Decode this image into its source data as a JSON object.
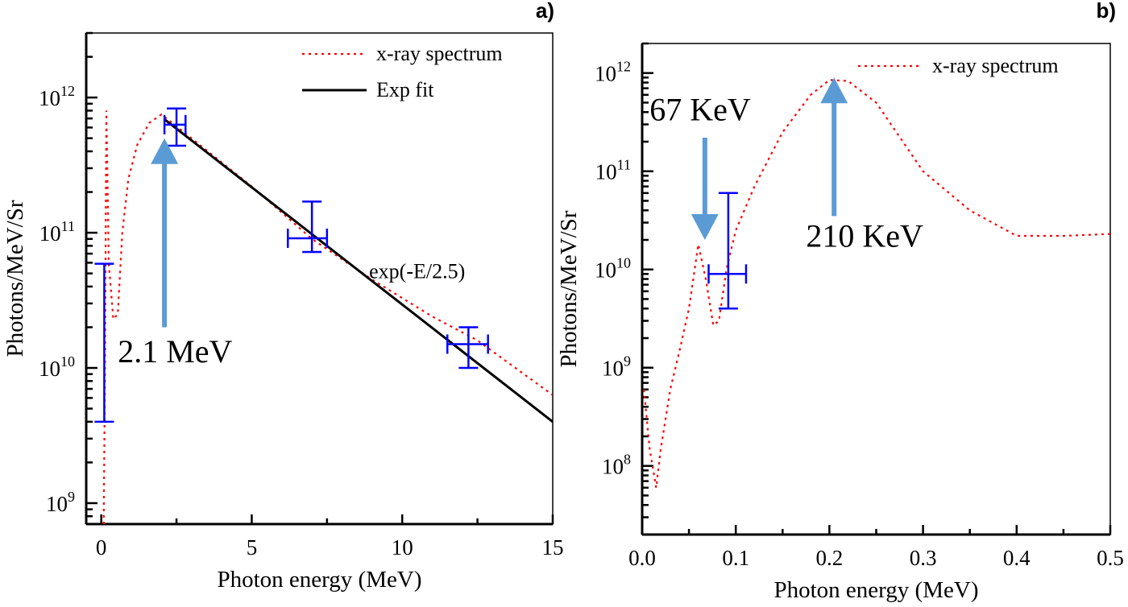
{
  "chart_data": [
    {
      "panel_label": "a)",
      "type": "line",
      "xlabel": "Photon energy (MeV)",
      "ylabel": "Photons/MeV/Sr",
      "xlim": [
        -0.5,
        15
      ],
      "ylim": [
        700000000.0,
        3000000000000.0
      ],
      "yscale": "log",
      "xticks": [
        0,
        5,
        10,
        15
      ],
      "yticks": [
        1000000000.0,
        10000000000.0,
        100000000000.0,
        1000000000000.0
      ],
      "grid": false,
      "legend_position": "top-right",
      "series": [
        {
          "name": "x-ray spectrum",
          "style": "dotted",
          "color": "#ff0000",
          "points": [
            [
              0.08,
              700000000.0
            ],
            [
              0.12,
              8000000000.0
            ],
            [
              0.17,
              800000000000.0
            ],
            [
              0.25,
              60000000000.0
            ],
            [
              0.4,
              23000000000.0
            ],
            [
              0.55,
              25000000000.0
            ],
            [
              0.7,
              100000000000.0
            ],
            [
              0.9,
              250000000000.0
            ],
            [
              1.2,
              450000000000.0
            ],
            [
              1.6,
              650000000000.0
            ],
            [
              2.0,
              750000000000.0
            ],
            [
              3,
              500000000000.0
            ],
            [
              5,
              220000000000.0
            ],
            [
              7,
              90000000000.0
            ],
            [
              9,
              45000000000.0
            ],
            [
              11,
              24000000000.0
            ],
            [
              12.5,
              16000000000.0
            ],
            [
              15,
              6300000000.0
            ]
          ]
        },
        {
          "name": "Exp fit",
          "style": "solid",
          "color": "#000000",
          "points": [
            [
              2.1,
              690000000000.0
            ],
            [
              15,
              4000000000.0
            ]
          ]
        }
      ],
      "error_points": [
        {
          "x": 0.1,
          "y": 9000000000.0,
          "ylo": 4000000000.0,
          "yhi": 59000000000.0,
          "xlo": 0.1,
          "xhi": 0.1
        },
        {
          "x": 2.5,
          "y": 630000000000.0,
          "ylo": 440000000000.0,
          "yhi": 830000000000.0,
          "xlo": 2.1,
          "xhi": 2.8
        },
        {
          "x": 7.0,
          "y": 91000000000.0,
          "ylo": 72000000000.0,
          "yhi": 170000000000.0,
          "xlo": 6.2,
          "xhi": 7.5
        },
        {
          "x": 12.2,
          "y": 15000000000.0,
          "ylo": 10000000000.0,
          "yhi": 20000000000.0,
          "xlo": 11.5,
          "xhi": 12.85
        }
      ],
      "error_color": "#0000ff",
      "annotations": [
        {
          "text": "exp(-E/2.5)",
          "x": 8.9,
          "y": 46000000000.0
        },
        {
          "text": "2.1 MeV",
          "x": 0.55,
          "y": 11000000000.0,
          "arrow": "up",
          "arrow_x": 2.1,
          "arrow_from": 20000000000.0,
          "arrow_to": 500000000000.0
        }
      ],
      "arrow_color": "#5b9bd5"
    },
    {
      "panel_label": "b)",
      "type": "line",
      "xlabel": "Photon energy (MeV)",
      "ylabel": "Photons/MeV/Sr",
      "xlim": [
        0,
        0.5
      ],
      "ylim": [
        20000000.0,
        2000000000000.0
      ],
      "yscale": "log",
      "xticks": [
        0.0,
        0.1,
        0.2,
        0.3,
        0.4,
        0.5
      ],
      "yticks": [
        100000000.0,
        1000000000.0,
        10000000000.0,
        100000000000.0,
        1000000000000.0
      ],
      "grid": false,
      "legend_position": "top-right",
      "series": [
        {
          "name": "x-ray spectrum",
          "style": "dotted",
          "color": "#ff0000",
          "points": [
            [
              0.002,
              600000000.0
            ],
            [
              0.008,
              150000000.0
            ],
            [
              0.015,
              60000000.0
            ],
            [
              0.02,
              150000000.0
            ],
            [
              0.03,
              600000000.0
            ],
            [
              0.04,
              1500000000.0
            ],
            [
              0.05,
              4000000000.0
            ],
            [
              0.06,
              18000000000.0
            ],
            [
              0.068,
              8000000000.0
            ],
            [
              0.076,
              2700000000.0
            ],
            [
              0.082,
              3000000000.0
            ],
            [
              0.09,
              10000000000.0
            ],
            [
              0.1,
              25000000000.0
            ],
            [
              0.12,
              70000000000.0
            ],
            [
              0.15,
              250000000000.0
            ],
            [
              0.18,
              600000000000.0
            ],
            [
              0.2,
              850000000000.0
            ],
            [
              0.22,
              830000000000.0
            ],
            [
              0.25,
              500000000000.0
            ],
            [
              0.3,
              100000000000.0
            ],
            [
              0.35,
              40000000000.0
            ],
            [
              0.4,
              22000000000.0
            ],
            [
              0.45,
              22000000000.0
            ],
            [
              0.5,
              23000000000.0
            ]
          ]
        }
      ],
      "error_points": [
        {
          "x": 0.092,
          "y": 9000000000.0,
          "ylo": 4000000000.0,
          "yhi": 60000000000.0,
          "xlo": 0.071,
          "xhi": 0.111
        }
      ],
      "error_color": "#0000ff",
      "annotations": [
        {
          "text": "67 KeV",
          "x": 0.008,
          "y": 330000000000.0,
          "arrow": "down",
          "arrow_x": 0.067,
          "arrow_from": 220000000000.0,
          "arrow_to": 20000000000.0
        },
        {
          "text": "210 KeV",
          "x": 0.175,
          "y": 17000000000.0,
          "arrow": "up",
          "arrow_x": 0.205,
          "arrow_from": 35000000000.0,
          "arrow_to": 900000000000.0
        }
      ],
      "arrow_color": "#5b9bd5"
    }
  ]
}
